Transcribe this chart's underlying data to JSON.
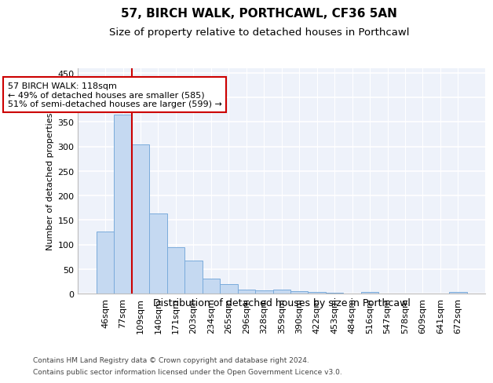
{
  "title1": "57, BIRCH WALK, PORTHCAWL, CF36 5AN",
  "title2": "Size of property relative to detached houses in Porthcawl",
  "xlabel": "Distribution of detached houses by size in Porthcawl",
  "ylabel": "Number of detached properties",
  "bin_labels": [
    "46sqm",
    "77sqm",
    "109sqm",
    "140sqm",
    "171sqm",
    "203sqm",
    "234sqm",
    "265sqm",
    "296sqm",
    "328sqm",
    "359sqm",
    "390sqm",
    "422sqm",
    "453sqm",
    "484sqm",
    "516sqm",
    "547sqm",
    "578sqm",
    "609sqm",
    "641sqm",
    "672sqm"
  ],
  "bar_heights": [
    127,
    365,
    304,
    164,
    94,
    67,
    30,
    20,
    8,
    6,
    8,
    5,
    4,
    1,
    0,
    3,
    0,
    0,
    0,
    0,
    3
  ],
  "bar_color": "#c5d9f1",
  "bar_edge_color": "#7aabdb",
  "vline_color": "#cc0000",
  "annotation_line1": "57 BIRCH WALK: 118sqm",
  "annotation_line2": "← 49% of detached houses are smaller (585)",
  "annotation_line3": "51% of semi-detached houses are larger (599) →",
  "annotation_box_color": "#ffffff",
  "annotation_box_edge": "#cc0000",
  "ylim": [
    0,
    460
  ],
  "yticks": [
    0,
    50,
    100,
    150,
    200,
    250,
    300,
    350,
    400,
    450
  ],
  "footer1": "Contains HM Land Registry data © Crown copyright and database right 2024.",
  "footer2": "Contains public sector information licensed under the Open Government Licence v3.0.",
  "bg_color": "#eef2fa",
  "grid_color": "#ffffff",
  "title1_fontsize": 11,
  "title2_fontsize": 9.5,
  "ylabel_fontsize": 8,
  "xlabel_fontsize": 9,
  "tick_fontsize": 8,
  "footer_fontsize": 6.5
}
